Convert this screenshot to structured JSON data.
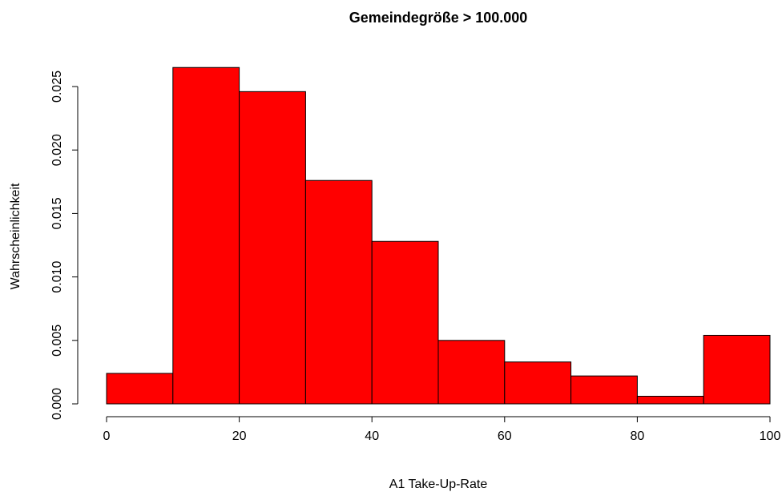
{
  "chart_data": {
    "type": "histogram",
    "title": "Gemeindegröße > 100.000",
    "x_label": "A1 Take-Up-Rate",
    "y_label": "Wahrscheinlichkeit",
    "bins": [
      0,
      10,
      20,
      30,
      40,
      50,
      60,
      70,
      80,
      90,
      100
    ],
    "values": [
      0.0024,
      0.0265,
      0.0246,
      0.0176,
      0.0128,
      0.005,
      0.0033,
      0.0022,
      0.0006,
      0.0054
    ],
    "color": "#ff0000",
    "xlim": [
      0,
      100
    ],
    "xticks": [
      0,
      20,
      40,
      60,
      80,
      100
    ],
    "ylim": [
      0,
      0.0265
    ],
    "yticks": [
      {
        "value": 0,
        "label": "0.000"
      },
      {
        "value": 0.005,
        "label": "0.005"
      },
      {
        "value": 0.01,
        "label": "0.010"
      },
      {
        "value": 0.015,
        "label": "0.015"
      },
      {
        "value": 0.02,
        "label": "0.020"
      },
      {
        "value": 0.025,
        "label": "0.025"
      }
    ]
  }
}
